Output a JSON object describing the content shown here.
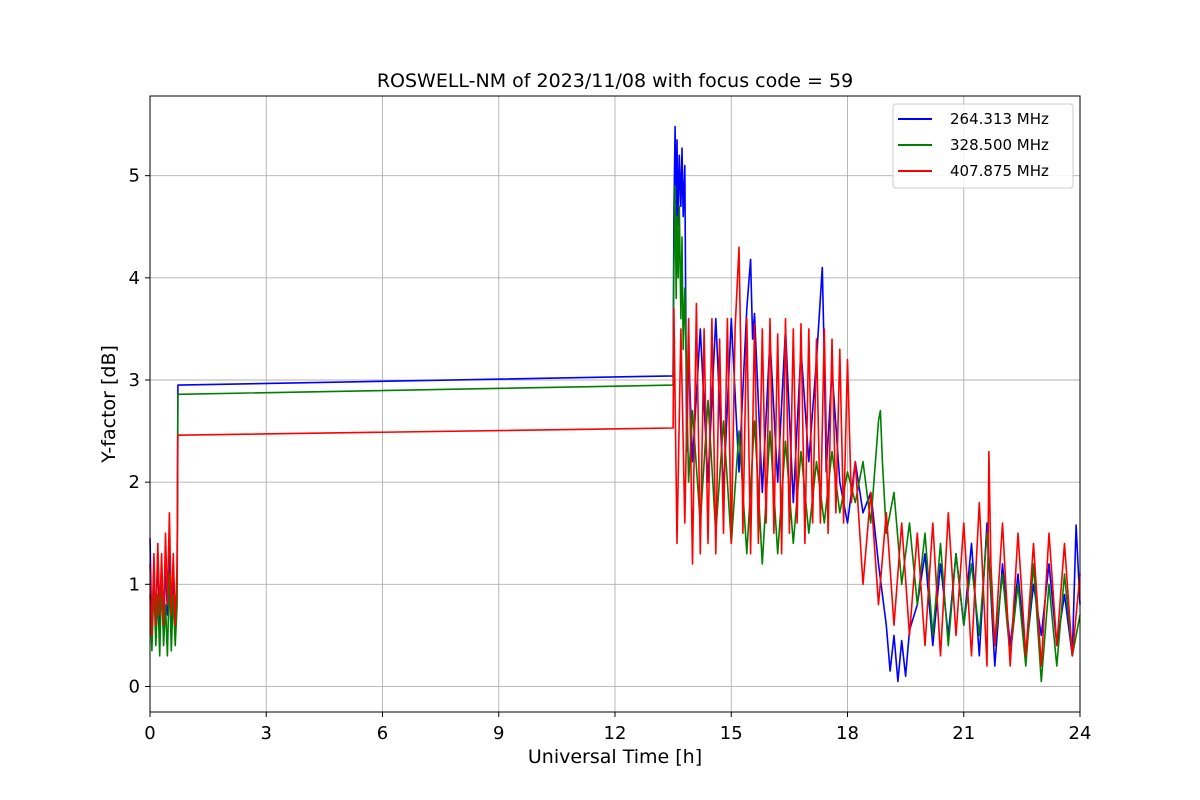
{
  "chart_data": {
    "type": "line",
    "title": "ROSWELL-NM of 2023/11/08 with focus code = 59",
    "xlabel": "Universal Time [h]",
    "ylabel": "Y-factor [dB]",
    "xlim": [
      0,
      24
    ],
    "ylim": [
      -0.25,
      5.78
    ],
    "xticks": [
      0,
      3,
      6,
      9,
      12,
      15,
      18,
      21,
      24
    ],
    "yticks": [
      0,
      1,
      2,
      3,
      4,
      5
    ],
    "grid": true,
    "legend_position": "top-right",
    "series": [
      {
        "name": "264.313 MHz",
        "color": "#0000ff",
        "x": [
          0,
          0.05,
          0.1,
          0.15,
          0.2,
          0.25,
          0.3,
          0.35,
          0.4,
          0.45,
          0.5,
          0.55,
          0.6,
          0.65,
          0.7,
          0.72,
          0.73,
          13.5,
          13.52,
          13.55,
          13.58,
          13.6,
          13.63,
          13.66,
          13.7,
          13.73,
          13.76,
          13.8,
          13.85,
          13.9,
          14.0,
          14.2,
          14.4,
          14.6,
          14.8,
          15.0,
          15.2,
          15.4,
          15.5,
          15.55,
          15.6,
          15.8,
          16.0,
          16.2,
          16.4,
          16.6,
          16.8,
          17.0,
          17.2,
          17.35,
          17.4,
          17.45,
          17.6,
          17.8,
          18.0,
          18.2,
          18.4,
          18.6,
          18.8,
          19.0,
          19.1,
          19.2,
          19.3,
          19.4,
          19.5,
          19.6,
          19.8,
          20.0,
          20.2,
          20.4,
          20.6,
          20.8,
          21.0,
          21.2,
          21.4,
          21.6,
          21.8,
          22.0,
          22.2,
          22.4,
          22.6,
          22.8,
          23.0,
          23.2,
          23.4,
          23.6,
          23.8,
          23.9,
          24.0
        ],
        "y": [
          1.45,
          0.5,
          1.2,
          0.55,
          1.3,
          0.6,
          1.1,
          0.45,
          1.25,
          0.7,
          1.35,
          0.5,
          1.2,
          0.55,
          1.1,
          2.95,
          2.95,
          3.04,
          4.6,
          5.48,
          4.2,
          5.35,
          4.5,
          5.2,
          4.7,
          5.27,
          4.6,
          5.1,
          2.3,
          3.3,
          2.2,
          3.5,
          2.0,
          3.6,
          1.9,
          3.6,
          2.1,
          3.7,
          4.18,
          3.4,
          3.65,
          1.9,
          3.4,
          2.0,
          3.5,
          1.8,
          3.3,
          2.2,
          3.2,
          4.1,
          3.2,
          2.1,
          3.1,
          2.0,
          1.6,
          2.2,
          1.7,
          1.9,
          1.2,
          0.6,
          0.15,
          0.5,
          0.05,
          0.45,
          0.1,
          0.55,
          0.8,
          1.3,
          0.4,
          1.2,
          0.5,
          1.3,
          0.6,
          1.4,
          0.3,
          1.6,
          0.2,
          1.2,
          0.4,
          1.1,
          0.3,
          1.0,
          0.5,
          1.2,
          0.4,
          0.9,
          0.3,
          1.58,
          0.8
        ]
      },
      {
        "name": "328.500 MHz",
        "color": "#008000",
        "x": [
          0,
          0.05,
          0.1,
          0.15,
          0.2,
          0.25,
          0.3,
          0.35,
          0.4,
          0.45,
          0.5,
          0.55,
          0.6,
          0.65,
          0.7,
          0.72,
          0.73,
          13.5,
          13.52,
          13.55,
          13.58,
          13.6,
          13.63,
          13.66,
          13.7,
          13.73,
          13.76,
          13.8,
          13.9,
          14.0,
          14.2,
          14.4,
          14.6,
          14.8,
          15.0,
          15.2,
          15.4,
          15.6,
          15.8,
          16.0,
          16.2,
          16.4,
          16.6,
          16.8,
          17.0,
          17.2,
          17.4,
          17.6,
          17.8,
          18.0,
          18.2,
          18.4,
          18.6,
          18.8,
          18.85,
          18.9,
          19.0,
          19.2,
          19.4,
          19.6,
          19.8,
          20.0,
          20.2,
          20.4,
          20.6,
          20.8,
          21.0,
          21.2,
          21.4,
          21.6,
          21.8,
          22.0,
          22.2,
          22.4,
          22.6,
          22.8,
          23.0,
          23.2,
          23.4,
          23.6,
          23.8,
          24.0
        ],
        "y": [
          0.9,
          0.35,
          1.0,
          0.4,
          0.9,
          0.3,
          1.05,
          0.4,
          0.8,
          0.3,
          1.1,
          0.35,
          0.9,
          0.4,
          0.8,
          2.86,
          2.86,
          2.95,
          4.1,
          4.9,
          3.8,
          4.6,
          4.0,
          4.7,
          3.6,
          4.4,
          3.3,
          3.9,
          2.0,
          2.7,
          1.6,
          2.8,
          1.5,
          2.6,
          1.4,
          2.5,
          1.3,
          2.6,
          1.2,
          2.5,
          1.3,
          2.4,
          1.4,
          2.3,
          1.5,
          2.2,
          1.6,
          2.3,
          1.7,
          2.1,
          1.8,
          2.2,
          1.6,
          2.6,
          2.7,
          2.2,
          1.5,
          1.9,
          1.0,
          1.6,
          0.8,
          1.5,
          0.5,
          1.4,
          0.4,
          1.3,
          0.6,
          1.2,
          0.5,
          1.5,
          0.4,
          1.1,
          0.3,
          1.0,
          0.2,
          1.2,
          0.05,
          1.0,
          0.2,
          1.1,
          0.3,
          0.7
        ]
      },
      {
        "name": "407.875 MHz",
        "color": "#ff0000",
        "x": [
          0,
          0.05,
          0.1,
          0.15,
          0.2,
          0.25,
          0.3,
          0.35,
          0.4,
          0.45,
          0.5,
          0.55,
          0.6,
          0.65,
          0.7,
          0.72,
          0.73,
          13.5,
          13.52,
          13.6,
          13.7,
          13.8,
          13.9,
          14.0,
          14.1,
          14.2,
          14.3,
          14.4,
          14.5,
          14.6,
          14.7,
          14.8,
          14.9,
          15.0,
          15.1,
          15.2,
          15.25,
          15.3,
          15.4,
          15.5,
          15.6,
          15.7,
          15.8,
          15.9,
          16.0,
          16.1,
          16.2,
          16.3,
          16.4,
          16.5,
          16.6,
          16.7,
          16.8,
          16.9,
          17.0,
          17.1,
          17.2,
          17.3,
          17.4,
          17.5,
          17.6,
          17.7,
          17.8,
          17.9,
          18.0,
          18.1,
          18.2,
          18.4,
          18.6,
          18.8,
          19.0,
          19.2,
          19.4,
          19.6,
          19.8,
          20.0,
          20.2,
          20.4,
          20.6,
          20.8,
          21.0,
          21.2,
          21.4,
          21.6,
          21.65,
          21.7,
          21.8,
          22.0,
          22.2,
          22.4,
          22.6,
          22.8,
          23.0,
          23.2,
          23.4,
          23.6,
          23.8,
          24.0
        ],
        "y": [
          1.2,
          0.5,
          1.3,
          0.6,
          1.4,
          0.7,
          1.3,
          0.6,
          1.5,
          0.8,
          1.7,
          0.7,
          1.3,
          0.6,
          1.2,
          2.46,
          2.46,
          2.53,
          3.7,
          1.4,
          3.5,
          1.6,
          3.6,
          1.2,
          3.75,
          1.3,
          3.5,
          1.4,
          3.6,
          1.3,
          3.4,
          1.5,
          3.6,
          1.4,
          3.5,
          4.3,
          3.2,
          1.5,
          3.6,
          1.3,
          3.55,
          1.4,
          3.5,
          1.6,
          3.6,
          1.5,
          3.45,
          1.3,
          3.6,
          1.5,
          3.5,
          1.6,
          3.55,
          1.4,
          3.5,
          1.6,
          3.4,
          1.6,
          3.5,
          1.5,
          3.4,
          1.7,
          3.3,
          1.6,
          3.2,
          1.8,
          2.2,
          1.0,
          1.9,
          0.8,
          1.7,
          0.6,
          1.6,
          0.5,
          1.5,
          0.4,
          1.6,
          0.3,
          1.7,
          0.5,
          1.6,
          0.3,
          1.8,
          0.2,
          2.3,
          1.2,
          0.4,
          1.6,
          0.2,
          1.5,
          0.3,
          1.4,
          0.2,
          1.5,
          0.4,
          1.4,
          0.3,
          1.1
        ]
      }
    ]
  }
}
